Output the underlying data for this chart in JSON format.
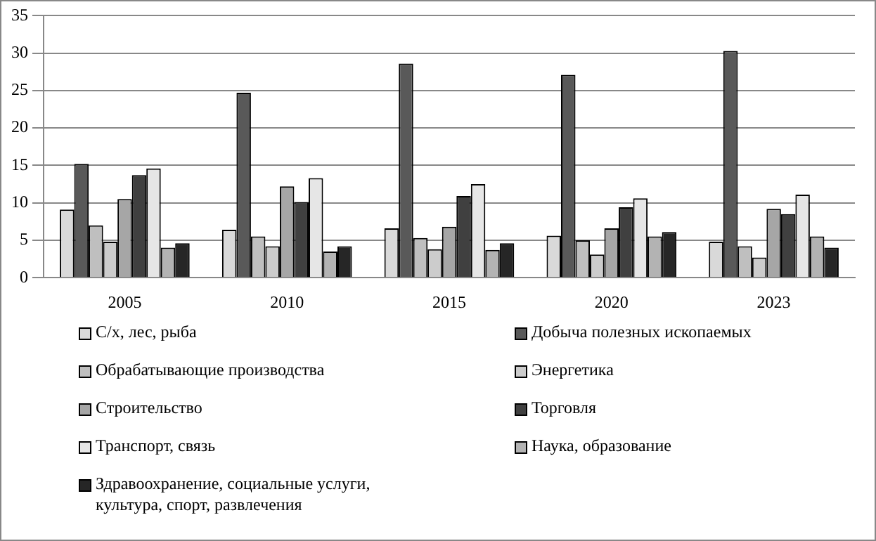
{
  "chart_data": {
    "type": "bar",
    "categories": [
      "2005",
      "2010",
      "2015",
      "2020",
      "2023"
    ],
    "series": [
      {
        "name": "С/х, лес, рыба",
        "color": "#d9d9d9",
        "values": [
          9.1,
          6.4,
          6.6,
          5.6,
          4.8
        ]
      },
      {
        "name": "Добыча полезных ископаемых",
        "color": "#595959",
        "values": [
          15.2,
          24.7,
          28.6,
          27.1,
          30.3
        ]
      },
      {
        "name": "Обрабатывающие производства",
        "color": "#bfbfbf",
        "values": [
          7.0,
          5.5,
          5.3,
          5.0,
          4.2
        ]
      },
      {
        "name": "Энергетика",
        "color": "#cccccc",
        "values": [
          4.8,
          4.2,
          3.8,
          3.1,
          2.7
        ]
      },
      {
        "name": "Строительство",
        "color": "#a6a6a6",
        "values": [
          10.5,
          12.2,
          6.8,
          6.6,
          9.2
        ]
      },
      {
        "name": "Торговля",
        "color": "#404040",
        "values": [
          13.7,
          10.1,
          10.9,
          9.4,
          8.5
        ]
      },
      {
        "name": "Транспорт, связь",
        "color": "#e6e6e6",
        "values": [
          14.6,
          13.3,
          12.5,
          10.6,
          11.1
        ]
      },
      {
        "name": "Наука, образование",
        "color": "#b3b3b3",
        "values": [
          4.0,
          3.5,
          3.7,
          5.5,
          5.5
        ]
      },
      {
        "name": "Здравоохранение, социальные услуги, культура, спорт, развлечения",
        "color": "#262626",
        "values": [
          4.6,
          4.2,
          4.6,
          6.1,
          4.0
        ]
      }
    ],
    "ylim": [
      0,
      35
    ],
    "yticks": [
      0,
      5,
      10,
      15,
      20,
      25,
      30,
      35
    ],
    "grid": "y",
    "legend": "bottom"
  }
}
